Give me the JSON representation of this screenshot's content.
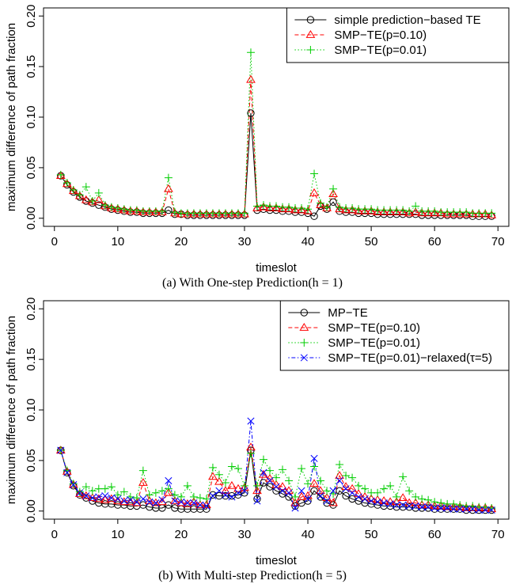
{
  "chart_data": [
    {
      "type": "line",
      "caption": "(a) With One-step Prediction(h = 1)",
      "x_label": "timeslot",
      "y_label": "maximum difference of path fraction",
      "x": [
        1,
        2,
        3,
        4,
        5,
        6,
        7,
        8,
        9,
        10,
        11,
        12,
        13,
        14,
        15,
        16,
        17,
        18,
        19,
        20,
        21,
        22,
        23,
        24,
        25,
        26,
        27,
        28,
        29,
        30,
        31,
        32,
        33,
        34,
        35,
        36,
        37,
        38,
        39,
        40,
        41,
        42,
        43,
        44,
        45,
        46,
        47,
        48,
        49,
        50,
        51,
        52,
        53,
        54,
        55,
        56,
        57,
        58,
        59,
        60,
        61,
        62,
        63,
        64,
        65,
        66,
        67,
        68,
        69
      ],
      "xlim": [
        -1.72,
        71.72
      ],
      "xticks": [
        0,
        10,
        20,
        30,
        40,
        50,
        60,
        70
      ],
      "ylim": [
        -0.008,
        0.208
      ],
      "yticks": [
        {
          "value": 0,
          "label": "0.00"
        },
        {
          "value": 0.05,
          "label": "0.05"
        },
        {
          "value": 0.1,
          "label": "0.10"
        },
        {
          "value": 0.15,
          "label": "0.15"
        },
        {
          "value": 0.2,
          "label": "0.20"
        }
      ],
      "legend": "topright",
      "series": [
        {
          "name": "simple prediction−based TE",
          "color": "#000000",
          "marker": "circle",
          "dash": "solid",
          "values": [
            0.042,
            0.033,
            0.026,
            0.021,
            0.017,
            0.015,
            0.013,
            0.011,
            0.009,
            0.008,
            0.007,
            0.006,
            0.006,
            0.005,
            0.005,
            0.005,
            0.005,
            0.008,
            0.004,
            0.004,
            0.003,
            0.003,
            0.003,
            0.003,
            0.003,
            0.003,
            0.003,
            0.003,
            0.003,
            0.003,
            0.104,
            0.008,
            0.009,
            0.008,
            0.008,
            0.007,
            0.007,
            0.006,
            0.006,
            0.005,
            0.002,
            0.012,
            0.009,
            0.016,
            0.007,
            0.006,
            0.006,
            0.005,
            0.005,
            0.005,
            0.004,
            0.004,
            0.004,
            0.004,
            0.004,
            0.004,
            0.004,
            0.003,
            0.003,
            0.003,
            0.003,
            0.003,
            0.003,
            0.003,
            0.003,
            0.002,
            0.002,
            0.002,
            0.002
          ]
        },
        {
          "name": "SMP−TE(p=0.10)",
          "color": "#ff0000",
          "marker": "triangle",
          "dash": "dashed",
          "values": [
            0.042,
            0.034,
            0.027,
            0.022,
            0.018,
            0.016,
            0.018,
            0.012,
            0.01,
            0.009,
            0.008,
            0.007,
            0.007,
            0.006,
            0.006,
            0.006,
            0.006,
            0.029,
            0.005,
            0.004,
            0.004,
            0.004,
            0.004,
            0.004,
            0.004,
            0.004,
            0.004,
            0.004,
            0.004,
            0.004,
            0.137,
            0.01,
            0.011,
            0.01,
            0.01,
            0.009,
            0.009,
            0.008,
            0.008,
            0.007,
            0.025,
            0.013,
            0.01,
            0.024,
            0.009,
            0.008,
            0.008,
            0.007,
            0.007,
            0.007,
            0.006,
            0.006,
            0.006,
            0.006,
            0.006,
            0.005,
            0.006,
            0.005,
            0.005,
            0.005,
            0.005,
            0.004,
            0.004,
            0.004,
            0.004,
            0.004,
            0.004,
            0.004,
            0.003
          ]
        },
        {
          "name": "SMP−TE(p=0.01)",
          "color": "#00cd00",
          "marker": "plus",
          "dash": "dotted",
          "values": [
            0.043,
            0.035,
            0.028,
            0.023,
            0.031,
            0.017,
            0.025,
            0.013,
            0.011,
            0.01,
            0.009,
            0.008,
            0.008,
            0.007,
            0.007,
            0.007,
            0.007,
            0.04,
            0.006,
            0.005,
            0.005,
            0.005,
            0.005,
            0.005,
            0.005,
            0.005,
            0.005,
            0.005,
            0.005,
            0.005,
            0.164,
            0.012,
            0.013,
            0.012,
            0.012,
            0.011,
            0.011,
            0.01,
            0.01,
            0.009,
            0.044,
            0.015,
            0.011,
            0.029,
            0.011,
            0.01,
            0.01,
            0.009,
            0.009,
            0.009,
            0.008,
            0.008,
            0.008,
            0.008,
            0.008,
            0.007,
            0.012,
            0.007,
            0.007,
            0.007,
            0.006,
            0.006,
            0.006,
            0.006,
            0.006,
            0.005,
            0.005,
            0.005,
            0.005
          ]
        }
      ]
    },
    {
      "type": "line",
      "caption": "(b) With Multi-step Prediction(h = 5)",
      "x_label": "timeslot",
      "y_label": "maximum difference of path fraction",
      "x": [
        1,
        2,
        3,
        4,
        5,
        6,
        7,
        8,
        9,
        10,
        11,
        12,
        13,
        14,
        15,
        16,
        17,
        18,
        19,
        20,
        21,
        22,
        23,
        24,
        25,
        26,
        27,
        28,
        29,
        30,
        31,
        32,
        33,
        34,
        35,
        36,
        37,
        38,
        39,
        40,
        41,
        42,
        43,
        44,
        45,
        46,
        47,
        48,
        49,
        50,
        51,
        52,
        53,
        54,
        55,
        56,
        57,
        58,
        59,
        60,
        61,
        62,
        63,
        64,
        65,
        66,
        67,
        68,
        69
      ],
      "xlim": [
        -1.72,
        71.72
      ],
      "xticks": [
        0,
        10,
        20,
        30,
        40,
        50,
        60,
        70
      ],
      "ylim": [
        -0.008,
        0.208
      ],
      "yticks": [
        {
          "value": 0,
          "label": "0.00"
        },
        {
          "value": 0.05,
          "label": "0.05"
        },
        {
          "value": 0.1,
          "label": "0.10"
        },
        {
          "value": 0.15,
          "label": "0.15"
        },
        {
          "value": 0.2,
          "label": "0.20"
        }
      ],
      "legend": "topright",
      "series": [
        {
          "name": "MP−TE",
          "color": "#000000",
          "marker": "circle",
          "dash": "solid",
          "values": [
            0.06,
            0.038,
            0.025,
            0.016,
            0.013,
            0.01,
            0.008,
            0.007,
            0.007,
            0.006,
            0.006,
            0.005,
            0.005,
            0.006,
            0.004,
            0.003,
            0.003,
            0.006,
            0.003,
            0.002,
            0.002,
            0.002,
            0.002,
            0.002,
            0.016,
            0.015,
            0.015,
            0.015,
            0.016,
            0.018,
            0.06,
            0.012,
            0.028,
            0.024,
            0.02,
            0.017,
            0.014,
            0.005,
            0.008,
            0.01,
            0.02,
            0.014,
            0.008,
            0.006,
            0.02,
            0.015,
            0.012,
            0.01,
            0.008,
            0.007,
            0.006,
            0.005,
            0.005,
            0.004,
            0.004,
            0.004,
            0.003,
            0.003,
            0.003,
            0.002,
            0.002,
            0.002,
            0.002,
            0.002,
            0.001,
            0.001,
            0.001,
            0.001,
            0.001
          ]
        },
        {
          "name": "SMP−TE(p=0.10)",
          "color": "#ff0000",
          "marker": "triangle",
          "dash": "dashed",
          "values": [
            0.06,
            0.039,
            0.026,
            0.017,
            0.015,
            0.013,
            0.012,
            0.011,
            0.012,
            0.01,
            0.009,
            0.009,
            0.008,
            0.028,
            0.01,
            0.008,
            0.009,
            0.018,
            0.01,
            0.008,
            0.007,
            0.009,
            0.006,
            0.006,
            0.034,
            0.029,
            0.02,
            0.025,
            0.022,
            0.023,
            0.063,
            0.02,
            0.036,
            0.032,
            0.026,
            0.024,
            0.02,
            0.008,
            0.014,
            0.015,
            0.027,
            0.02,
            0.013,
            0.008,
            0.035,
            0.024,
            0.022,
            0.017,
            0.014,
            0.012,
            0.011,
            0.01,
            0.009,
            0.009,
            0.013,
            0.008,
            0.008,
            0.006,
            0.006,
            0.005,
            0.005,
            0.004,
            0.004,
            0.004,
            0.003,
            0.003,
            0.003,
            0.003,
            0.002
          ]
        },
        {
          "name": "SMP−TE(p=0.01)",
          "color": "#00cd00",
          "marker": "plus",
          "dash": "dotted",
          "values": [
            0.06,
            0.04,
            0.027,
            0.019,
            0.024,
            0.02,
            0.022,
            0.022,
            0.024,
            0.016,
            0.019,
            0.014,
            0.013,
            0.04,
            0.016,
            0.018,
            0.02,
            0.022,
            0.016,
            0.014,
            0.025,
            0.014,
            0.013,
            0.012,
            0.043,
            0.036,
            0.028,
            0.044,
            0.042,
            0.025,
            0.057,
            0.025,
            0.051,
            0.04,
            0.033,
            0.041,
            0.03,
            0.014,
            0.042,
            0.027,
            0.044,
            0.03,
            0.02,
            0.017,
            0.046,
            0.035,
            0.033,
            0.025,
            0.022,
            0.018,
            0.018,
            0.022,
            0.025,
            0.014,
            0.034,
            0.02,
            0.014,
            0.012,
            0.011,
            0.009,
            0.008,
            0.007,
            0.007,
            0.006,
            0.005,
            0.005,
            0.004,
            0.004,
            0.003
          ]
        },
        {
          "name": "SMP−TE(p=0.01)−relaxed(τ=5)",
          "color": "#0000ff",
          "marker": "cross",
          "dash": "dotdash",
          "values": [
            0.06,
            0.038,
            0.026,
            0.018,
            0.015,
            0.013,
            0.014,
            0.015,
            0.013,
            0.012,
            0.01,
            0.011,
            0.009,
            0.012,
            0.009,
            0.008,
            0.011,
            0.03,
            0.01,
            0.009,
            0.008,
            0.008,
            0.006,
            0.005,
            0.015,
            0.02,
            0.016,
            0.014,
            0.018,
            0.02,
            0.089,
            0.01,
            0.038,
            0.03,
            0.024,
            0.02,
            0.018,
            0.003,
            0.02,
            0.012,
            0.052,
            0.015,
            0.01,
            0.02,
            0.03,
            0.022,
            0.018,
            0.014,
            0.012,
            0.01,
            0.009,
            0.008,
            0.007,
            0.006,
            0.006,
            0.005,
            0.005,
            0.004,
            0.004,
            0.003,
            0.003,
            0.003,
            0.002,
            0.002,
            0.002,
            0.002,
            0.001,
            0.001,
            0.001
          ]
        }
      ]
    }
  ]
}
